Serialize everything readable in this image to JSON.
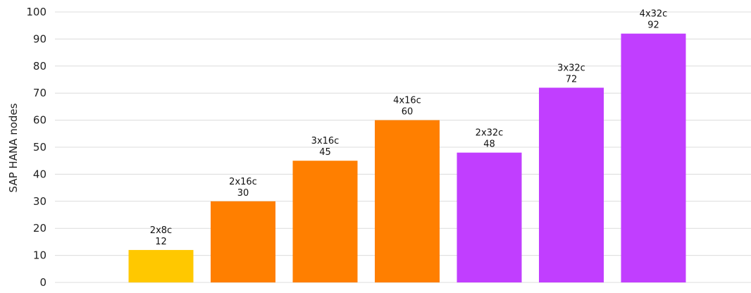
{
  "chart_data": {
    "type": "bar",
    "title": "",
    "xlabel": "",
    "ylabel": "SAP HANA nodes",
    "ylim": [
      0,
      100
    ],
    "yticks": [
      0,
      10,
      20,
      30,
      40,
      50,
      60,
      70,
      80,
      90,
      100
    ],
    "grid": true,
    "categories": [
      "",
      "2x8c",
      "2x16c",
      "3x16c",
      "4x16c",
      "2x32c",
      "3x32c",
      "4x32c"
    ],
    "values": [
      0,
      12,
      30,
      45,
      60,
      48,
      72,
      92
    ],
    "colors": [
      "#ffffff",
      "#ffc800",
      "#ff7f00",
      "#ff7f00",
      "#ff7f00",
      "#c13eff",
      "#c13eff",
      "#c13eff"
    ]
  }
}
